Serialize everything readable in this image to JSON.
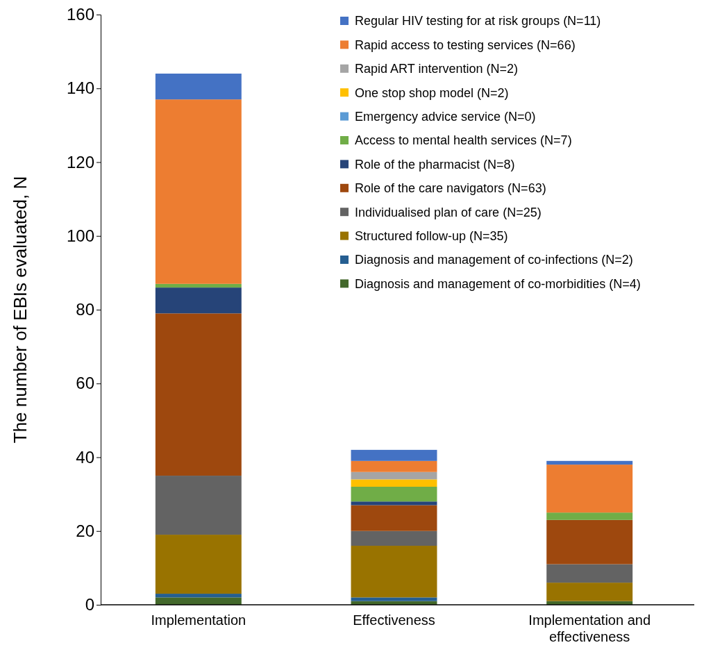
{
  "chart_data": {
    "type": "bar",
    "stacked": true,
    "ylabel": "The number of EBIs evaluated, N",
    "categories": [
      "Implementation",
      "Effectiveness",
      "Implementation and effectiveness"
    ],
    "ylim": [
      0,
      160
    ],
    "yticks": [
      0,
      20,
      40,
      60,
      80,
      100,
      120,
      140,
      160
    ],
    "grid": false,
    "legend": "top right",
    "series": [
      {
        "name": "Diagnosis and management of co-morbidities (N=4)",
        "color": "#43682b",
        "values": [
          2,
          1,
          1
        ]
      },
      {
        "name": "Diagnosis and management of co-infections (N=2)",
        "color": "#255e91",
        "values": [
          1,
          1,
          0
        ]
      },
      {
        "name": "Structured follow-up (N=35)",
        "color": "#997300",
        "values": [
          16,
          14,
          5
        ]
      },
      {
        "name": "Individualised plan of care (N=25)",
        "color": "#636363",
        "values": [
          16,
          4,
          5
        ]
      },
      {
        "name": "Role of the care navigators (N=63)",
        "color": "#9e480e",
        "values": [
          44,
          7,
          12
        ]
      },
      {
        "name": "Role of the pharmacist (N=8)",
        "color": "#264478",
        "values": [
          7,
          1,
          0
        ]
      },
      {
        "name": "Access to mental health services (N=7)",
        "color": "#70ad47",
        "values": [
          1,
          4,
          2
        ]
      },
      {
        "name": "Emergency advice service (N=0)",
        "color": "#5b9bd5",
        "values": [
          0,
          0,
          0
        ]
      },
      {
        "name": "One stop shop model (N=2)",
        "color": "#ffc000",
        "values": [
          0,
          2,
          0
        ]
      },
      {
        "name": "Rapid ART intervention (N=2)",
        "color": "#a5a5a5",
        "values": [
          0,
          2,
          0
        ]
      },
      {
        "name": "Rapid access to testing services (N=66)",
        "color": "#ed7d31",
        "values": [
          50,
          3,
          13
        ]
      },
      {
        "name": "Regular HIV testing for at risk groups (N=11)",
        "color": "#4472c4",
        "values": [
          7,
          3,
          1
        ]
      }
    ]
  }
}
